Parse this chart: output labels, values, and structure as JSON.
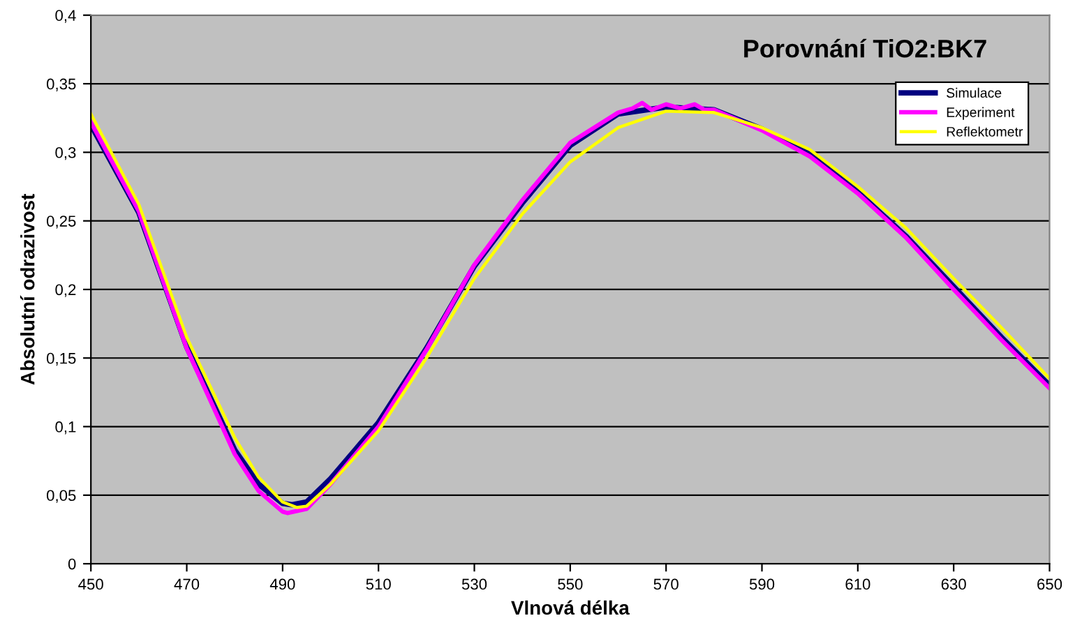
{
  "chart_data": {
    "type": "line",
    "title": "Porovnání TiO2:BK7",
    "xlabel": "Vlnová délka",
    "ylabel": "Absolutní odrazivost",
    "xlim": [
      450,
      650
    ],
    "xticks": [
      450,
      470,
      490,
      510,
      530,
      550,
      570,
      590,
      610,
      630,
      650
    ],
    "ylim": [
      0,
      0.4
    ],
    "yticks": [
      {
        "value": 0,
        "label": "0"
      },
      {
        "value": 0.05,
        "label": "0,05"
      },
      {
        "value": 0.1,
        "label": "0,1"
      },
      {
        "value": 0.15,
        "label": "0,15"
      },
      {
        "value": 0.2,
        "label": "0,2"
      },
      {
        "value": 0.25,
        "label": "0,25"
      },
      {
        "value": 0.3,
        "label": "0,3"
      },
      {
        "value": 0.35,
        "label": "0,35"
      },
      {
        "value": 0.4,
        "label": "0,4"
      }
    ],
    "grid": "y",
    "legend": "top right",
    "marker": "none",
    "line_style": "solid",
    "series": [
      {
        "name": "Simulace",
        "color": "#000080",
        "x": [
          450,
          460,
          470,
          480,
          485,
          490,
          492,
          495,
          500,
          510,
          520,
          530,
          540,
          550,
          560,
          570,
          580,
          590,
          600,
          610,
          620,
          630,
          640,
          650
        ],
        "values": [
          0.32,
          0.256,
          0.158,
          0.083,
          0.058,
          0.044,
          0.043,
          0.045,
          0.062,
          0.103,
          0.157,
          0.217,
          0.263,
          0.305,
          0.328,
          0.333,
          0.331,
          0.317,
          0.299,
          0.271,
          0.239,
          0.202,
          0.165,
          0.13
        ]
      },
      {
        "name": "Experiment",
        "color": "#ff00ff",
        "x": [
          450,
          460,
          470,
          480,
          485,
          490,
          491,
          495,
          500,
          510,
          520,
          530,
          540,
          550,
          560,
          563,
          565,
          567,
          570,
          573,
          576,
          578,
          580,
          590,
          600,
          610,
          620,
          630,
          640,
          650
        ],
        "values": [
          0.322,
          0.257,
          0.157,
          0.08,
          0.053,
          0.038,
          0.037,
          0.04,
          0.058,
          0.1,
          0.156,
          0.218,
          0.265,
          0.307,
          0.329,
          0.332,
          0.336,
          0.331,
          0.335,
          0.332,
          0.335,
          0.331,
          0.331,
          0.316,
          0.297,
          0.27,
          0.238,
          0.2,
          0.163,
          0.128
        ]
      },
      {
        "name": "Reflektometr",
        "color": "#ffff00",
        "x": [
          450,
          460,
          470,
          480,
          485,
          490,
          493,
          495,
          500,
          510,
          520,
          530,
          540,
          550,
          560,
          570,
          580,
          590,
          600,
          610,
          620,
          630,
          640,
          650
        ],
        "values": [
          0.328,
          0.262,
          0.165,
          0.092,
          0.063,
          0.045,
          0.041,
          0.042,
          0.058,
          0.097,
          0.15,
          0.208,
          0.255,
          0.293,
          0.318,
          0.33,
          0.329,
          0.318,
          0.302,
          0.275,
          0.245,
          0.208,
          0.172,
          0.135
        ]
      }
    ]
  }
}
